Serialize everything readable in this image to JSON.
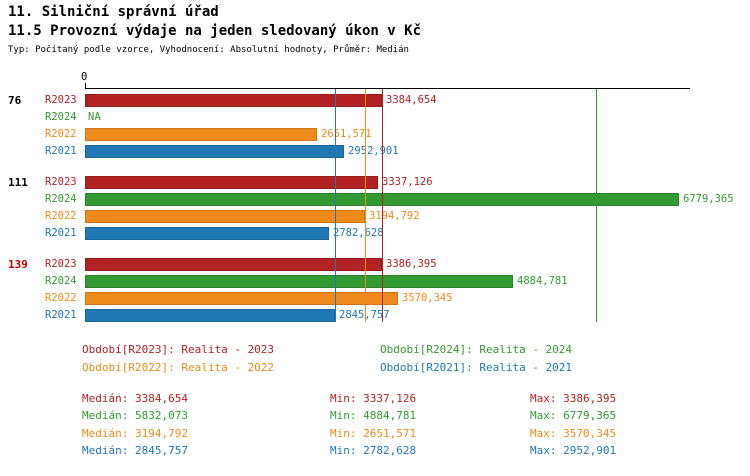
{
  "header": {
    "title_line1": "11. Silniční správní úřad",
    "title_line2": "11.5 Provozní výdaje na jeden sledovaný úkon v Kč",
    "meta": "Typ: Počítaný podle vzorce, Vyhodnocení: Absolutní hodnoty, Průměr: Medián"
  },
  "colors": {
    "R2023": "#b22222",
    "R2024": "#339933",
    "R2022": "#ef8a1d",
    "R2021": "#1f77b4",
    "axis": "#000000",
    "group_highlight": "#cc0000",
    "background": "#ffffff"
  },
  "chart_data": {
    "type": "bar",
    "orientation": "horizontal",
    "axis": {
      "origin_label": "0",
      "xmin": 0,
      "xmax": 6900,
      "position": "top"
    },
    "series": [
      {
        "key": "R2023",
        "label": "R2023"
      },
      {
        "key": "R2024",
        "label": "R2024"
      },
      {
        "key": "R2022",
        "label": "R2022"
      },
      {
        "key": "R2021",
        "label": "R2021"
      }
    ],
    "groups": [
      {
        "label": "76",
        "label_color": "#000000",
        "bars": [
          {
            "series": "R2023",
            "value": 3384.654,
            "display": "3384,654"
          },
          {
            "series": "R2024",
            "value": null,
            "display": "NA"
          },
          {
            "series": "R2022",
            "value": 2651.571,
            "display": "2651,571"
          },
          {
            "series": "R2021",
            "value": 2952.901,
            "display": "2952,901"
          }
        ]
      },
      {
        "label": "111",
        "label_color": "#000000",
        "bars": [
          {
            "series": "R2023",
            "value": 3337.126,
            "display": "3337,126"
          },
          {
            "series": "R2024",
            "value": 6779.365,
            "display": "6779,365"
          },
          {
            "series": "R2022",
            "value": 3194.792,
            "display": "3194,792"
          },
          {
            "series": "R2021",
            "value": 2782.628,
            "display": "2782,628"
          }
        ]
      },
      {
        "label": "139",
        "label_color": "#cc0000",
        "bars": [
          {
            "series": "R2023",
            "value": 3386.395,
            "display": "3386,395"
          },
          {
            "series": "R2024",
            "value": 4884.781,
            "display": "4884,781"
          },
          {
            "series": "R2022",
            "value": 3570.345,
            "display": "3570,345"
          },
          {
            "series": "R2021",
            "value": 2845.757,
            "display": "2845,757"
          }
        ]
      }
    ],
    "medians": [
      {
        "series": "R2023",
        "value": 3384.654
      },
      {
        "series": "R2024",
        "value": 5832.073
      },
      {
        "series": "R2022",
        "value": 3194.792
      },
      {
        "series": "R2021",
        "value": 2845.757
      }
    ]
  },
  "legend": {
    "items": [
      {
        "series": "R2023",
        "label": "Období[R2023]: Realita - 2023"
      },
      {
        "series": "R2024",
        "label": "Období[R2024]: Realita - 2024"
      },
      {
        "series": "R2022",
        "label": "Období[R2022]: Realita - 2022"
      },
      {
        "series": "R2021",
        "label": "Období[R2021]: Realita - 2021"
      }
    ]
  },
  "stats": {
    "rows": [
      {
        "series": "R2023",
        "median": "Medián: 3384,654",
        "min": "Min: 3337,126",
        "max": "Max: 3386,395"
      },
      {
        "series": "R2024",
        "median": "Medián: 5832,073",
        "min": "Min: 4884,781",
        "max": "Max: 6779,365"
      },
      {
        "series": "R2022",
        "median": "Medián: 3194,792",
        "min": "Min: 2651,571",
        "max": "Max: 3570,345"
      },
      {
        "series": "R2021",
        "median": "Medián: 2845,757",
        "min": "Min: 2782,628",
        "max": "Max: 2952,901"
      }
    ]
  }
}
